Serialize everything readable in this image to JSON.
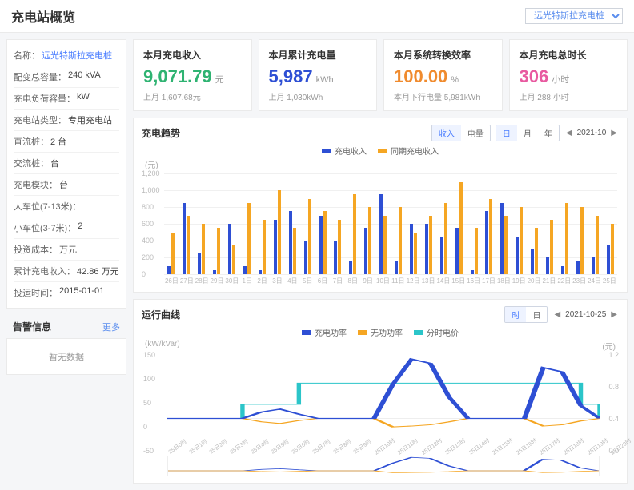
{
  "header": {
    "title": "充电站概览",
    "station_select": "远光特斯拉充电桩"
  },
  "info": {
    "rows": [
      {
        "label": "名称：",
        "value": "远光特斯拉充电桩",
        "link": true
      },
      {
        "label": "配变总容量：",
        "value": "240 kVA"
      },
      {
        "label": "充电负荷容量：",
        "value": "kW"
      },
      {
        "label": "充电站类型：",
        "value": "专用充电站"
      },
      {
        "label": "直流桩：",
        "value": "2 台"
      },
      {
        "label": "交流桩：",
        "value": "台"
      },
      {
        "label": "充电模块：",
        "value": "台"
      },
      {
        "label": "大车位(7-13米)：",
        "value": ""
      },
      {
        "label": "小车位(3-7米)：",
        "value": "2"
      },
      {
        "label": "投资成本：",
        "value": "万元"
      },
      {
        "label": "累计充电收入：",
        "value": "42.86 万元"
      },
      {
        "label": "投运时间：",
        "value": "2015-01-01"
      }
    ]
  },
  "alarm": {
    "title": "告警信息",
    "more": "更多",
    "empty": "暂无数据"
  },
  "kpis": [
    {
      "title": "本月充电收入",
      "value": "9,071.79",
      "unit": "元",
      "sub": "上月  1,607.68元",
      "color": "#2fb372"
    },
    {
      "title": "本月累计充电量",
      "value": "5,987",
      "unit": "kWh",
      "sub": "上月  1,030kWh",
      "color": "#2e4fd4"
    },
    {
      "title": "本月系统转换效率",
      "value": "100.00",
      "unit": "%",
      "sub": "本月下行电量  5,981kWh",
      "color": "#f08b2e"
    },
    {
      "title": "本月充电总时长",
      "value": "306",
      "unit": "小时",
      "sub": "上月  288 小时",
      "color": "#e85aa0"
    }
  ],
  "trend": {
    "title": "充电趋势",
    "seg1": [
      "收入",
      "电量"
    ],
    "seg1_active": 0,
    "seg2": [
      "日",
      "月",
      "年"
    ],
    "seg2_active": 0,
    "date": "2021-10",
    "yunit": "(元)",
    "legend": [
      {
        "label": "充电收入",
        "color": "#2e4fd4"
      },
      {
        "label": "同期充电收入",
        "color": "#f5a623"
      }
    ],
    "ymax": 1200,
    "ytick": 200,
    "colors": {
      "a": "#2e4fd4",
      "b": "#f5a623",
      "grid": "#f0f0f0"
    },
    "categories": [
      "26日",
      "27日",
      "28日",
      "29日",
      "30日",
      "1日",
      "2日",
      "3日",
      "4日",
      "5日",
      "6日",
      "7日",
      "8日",
      "9日",
      "10日",
      "11日",
      "12日",
      "13日",
      "14日",
      "15日",
      "16日",
      "17日",
      "18日",
      "19日",
      "20日",
      "21日",
      "22日",
      "23日",
      "24日",
      "25日"
    ],
    "series_a": [
      100,
      850,
      250,
      50,
      600,
      100,
      50,
      650,
      750,
      400,
      700,
      400,
      150,
      550,
      950,
      150,
      600,
      600,
      450,
      550,
      50,
      750,
      850,
      450,
      300,
      200,
      100,
      150,
      200,
      350
    ],
    "series_b": [
      500,
      700,
      600,
      550,
      350,
      850,
      650,
      1000,
      550,
      900,
      750,
      650,
      950,
      800,
      700,
      800,
      500,
      700,
      850,
      1100,
      550,
      900,
      700,
      800,
      550,
      650,
      850,
      800,
      700,
      600
    ]
  },
  "curve": {
    "title": "运行曲线",
    "seg": [
      "时",
      "日"
    ],
    "seg_active": 0,
    "date": "2021-10-25",
    "legend": [
      {
        "label": "充电功率",
        "color": "#2e4fd4"
      },
      {
        "label": "无功功率",
        "color": "#f5a623"
      },
      {
        "label": "分时电价",
        "color": "#2bc5c9"
      }
    ],
    "left_unit": "(kW/kVar)",
    "right_unit": "(元)",
    "ymaxL": 150,
    "ytickL": 50,
    "ymaxR": 1.2,
    "ytickR": 0.4,
    "xlabels": [
      "25日0时",
      "25日1时",
      "25日2时",
      "25日3时",
      "25日4时",
      "25日5时",
      "25日6时",
      "25日7时",
      "25日8时",
      "25日9时",
      "25日10时",
      "25日11时",
      "25日12时",
      "25日13时",
      "25日14时",
      "25日15时",
      "25日16时",
      "25日17时",
      "25日18时",
      "25日19时",
      "25日20时",
      "25日21时",
      "25日22时",
      "25日23时"
    ],
    "power": [
      0,
      0,
      0,
      0,
      0,
      15,
      22,
      10,
      0,
      0,
      0,
      0,
      80,
      140,
      130,
      50,
      0,
      0,
      0,
      0,
      120,
      110,
      30,
      0
    ],
    "reactive": [
      0,
      0,
      0,
      0,
      0,
      -8,
      -12,
      -5,
      0,
      0,
      0,
      0,
      -20,
      -18,
      -15,
      -8,
      0,
      0,
      0,
      0,
      -18,
      -15,
      -6,
      0
    ],
    "price": [
      0.3,
      0.3,
      0.3,
      0.3,
      0.5,
      0.5,
      0.5,
      0.8,
      0.8,
      0.8,
      0.8,
      0.8,
      0.8,
      0.8,
      0.8,
      0.8,
      0.8,
      0.8,
      0.8,
      0.8,
      0.8,
      0.8,
      0.5,
      0.3
    ]
  }
}
